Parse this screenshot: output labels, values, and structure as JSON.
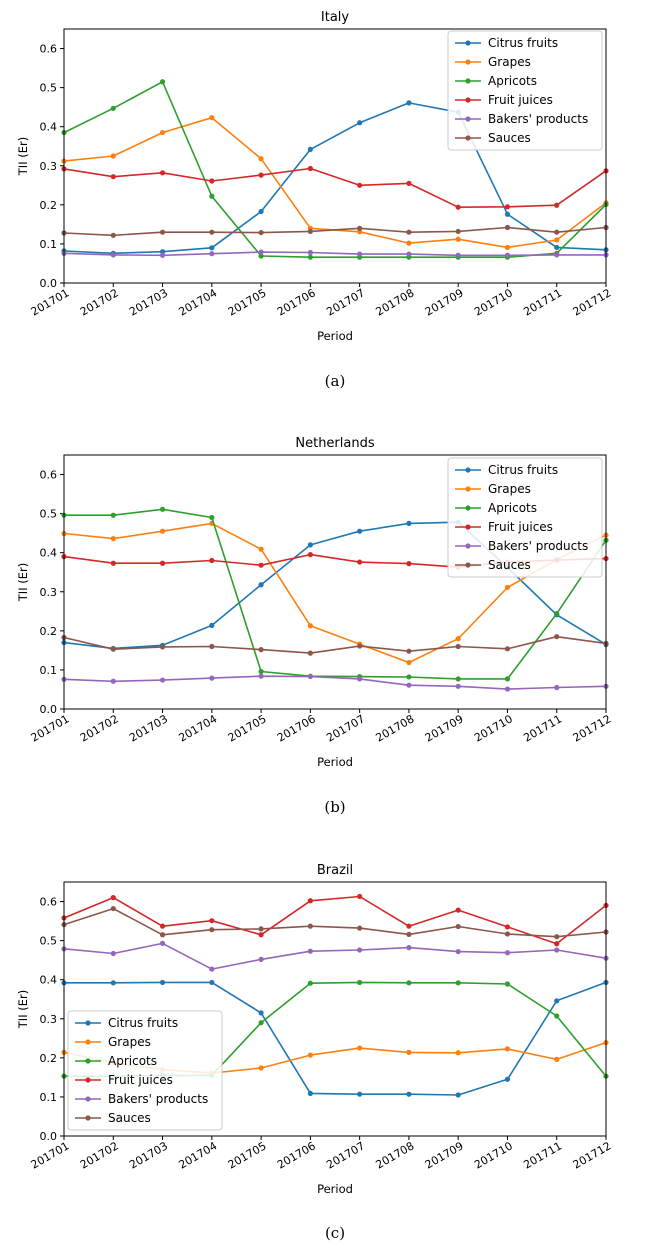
{
  "chart_data": [
    {
      "type": "line",
      "title": "Italy",
      "xlabel": "Period",
      "ylabel": "TII (Er)",
      "caption": "(a)",
      "ylim": [
        0,
        0.65
      ],
      "yticks": [
        "0.0",
        "0.1",
        "0.2",
        "0.3",
        "0.4",
        "0.5",
        "0.6"
      ],
      "legend_position": "upper-right",
      "categories": [
        "201701",
        "201702",
        "201703",
        "201704",
        "201705",
        "201706",
        "201707",
        "201708",
        "201709",
        "201710",
        "201711",
        "201712"
      ],
      "series": [
        {
          "name": "Citrus fruits",
          "color": "#1f77b4",
          "values": [
            0.082,
            0.076,
            0.08,
            0.09,
            0.183,
            0.342,
            0.41,
            0.461,
            0.437,
            0.176,
            0.091,
            0.085
          ]
        },
        {
          "name": "Grapes",
          "color": "#ff7f0e",
          "values": [
            0.312,
            0.325,
            0.385,
            0.423,
            0.318,
            0.14,
            0.131,
            0.102,
            0.112,
            0.091,
            0.11,
            0.205
          ]
        },
        {
          "name": "Apricots",
          "color": "#2ca02c",
          "values": [
            0.385,
            0.447,
            0.515,
            0.222,
            0.069,
            0.066,
            0.066,
            0.066,
            0.066,
            0.066,
            0.076,
            0.201
          ]
        },
        {
          "name": "Fruit juices",
          "color": "#d62728",
          "values": [
            0.292,
            0.272,
            0.282,
            0.261,
            0.276,
            0.293,
            0.25,
            0.255,
            0.194,
            0.195,
            0.199,
            0.287
          ]
        },
        {
          "name": "Bakers' products",
          "color": "#9467bd",
          "values": [
            0.076,
            0.072,
            0.071,
            0.075,
            0.079,
            0.078,
            0.074,
            0.074,
            0.071,
            0.071,
            0.072,
            0.072
          ]
        },
        {
          "name": "Sauces",
          "color": "#8c564b",
          "values": [
            0.128,
            0.122,
            0.13,
            0.13,
            0.129,
            0.132,
            0.14,
            0.13,
            0.132,
            0.142,
            0.13,
            0.142
          ]
        }
      ]
    },
    {
      "type": "line",
      "title": "Netherlands",
      "xlabel": "Period",
      "ylabel": "TII (Er)",
      "caption": "(b)",
      "ylim": [
        0,
        0.65
      ],
      "yticks": [
        "0.0",
        "0.1",
        "0.2",
        "0.3",
        "0.4",
        "0.5",
        "0.6"
      ],
      "legend_position": "upper-right",
      "categories": [
        "201701",
        "201702",
        "201703",
        "201704",
        "201705",
        "201706",
        "201707",
        "201708",
        "201709",
        "201710",
        "201711",
        "201712"
      ],
      "series": [
        {
          "name": "Citrus fruits",
          "color": "#1f77b4",
          "values": [
            0.17,
            0.155,
            0.163,
            0.214,
            0.318,
            0.42,
            0.455,
            0.475,
            0.478,
            0.362,
            0.241,
            0.165
          ]
        },
        {
          "name": "Grapes",
          "color": "#ff7f0e",
          "values": [
            0.449,
            0.436,
            0.455,
            0.475,
            0.409,
            0.213,
            0.166,
            0.119,
            0.18,
            0.311,
            0.382,
            0.445
          ]
        },
        {
          "name": "Apricots",
          "color": "#2ca02c",
          "values": [
            0.496,
            0.496,
            0.511,
            0.49,
            0.096,
            0.084,
            0.083,
            0.082,
            0.077,
            0.077,
            0.244,
            0.432
          ]
        },
        {
          "name": "Fruit juices",
          "color": "#d62728",
          "values": [
            0.39,
            0.373,
            0.373,
            0.38,
            0.368,
            0.395,
            0.376,
            0.372,
            0.363,
            0.376,
            0.381,
            0.385
          ]
        },
        {
          "name": "Bakers' products",
          "color": "#9467bd",
          "values": [
            0.076,
            0.071,
            0.074,
            0.079,
            0.084,
            0.083,
            0.077,
            0.061,
            0.058,
            0.051,
            0.055,
            0.058
          ]
        },
        {
          "name": "Sauces",
          "color": "#8c564b",
          "values": [
            0.183,
            0.153,
            0.159,
            0.16,
            0.152,
            0.143,
            0.161,
            0.148,
            0.16,
            0.154,
            0.185,
            0.168
          ]
        }
      ]
    },
    {
      "type": "line",
      "title": "Brazil",
      "xlabel": "Period",
      "ylabel": "TII (Er)",
      "caption": "(c)",
      "ylim": [
        0,
        0.65
      ],
      "yticks": [
        "0.0",
        "0.1",
        "0.2",
        "0.3",
        "0.4",
        "0.5",
        "0.6"
      ],
      "legend_position": "lower-left",
      "categories": [
        "201701",
        "201702",
        "201703",
        "201704",
        "201705",
        "201706",
        "201707",
        "201708",
        "201709",
        "201710",
        "201711",
        "201712"
      ],
      "series": [
        {
          "name": "Citrus fruits",
          "color": "#1f77b4",
          "values": [
            0.392,
            0.392,
            0.393,
            0.393,
            0.315,
            0.109,
            0.107,
            0.107,
            0.105,
            0.145,
            0.346,
            0.393
          ]
        },
        {
          "name": "Grapes",
          "color": "#ff7f0e",
          "values": [
            0.214,
            0.187,
            0.17,
            0.161,
            0.174,
            0.207,
            0.225,
            0.214,
            0.213,
            0.223,
            0.196,
            0.239
          ]
        },
        {
          "name": "Apricots",
          "color": "#2ca02c",
          "values": [
            0.153,
            0.153,
            0.155,
            0.155,
            0.29,
            0.391,
            0.393,
            0.392,
            0.392,
            0.389,
            0.307,
            0.153
          ]
        },
        {
          "name": "Fruit juices",
          "color": "#d62728",
          "values": [
            0.558,
            0.61,
            0.537,
            0.551,
            0.515,
            0.602,
            0.613,
            0.537,
            0.578,
            0.535,
            0.492,
            0.59
          ]
        },
        {
          "name": "Bakers' products",
          "color": "#9467bd",
          "values": [
            0.479,
            0.467,
            0.493,
            0.427,
            0.452,
            0.473,
            0.476,
            0.482,
            0.472,
            0.469,
            0.476,
            0.455
          ]
        },
        {
          "name": "Sauces",
          "color": "#8c564b",
          "values": [
            0.541,
            0.582,
            0.515,
            0.528,
            0.53,
            0.537,
            0.532,
            0.516,
            0.536,
            0.517,
            0.51,
            0.522
          ]
        }
      ]
    }
  ]
}
